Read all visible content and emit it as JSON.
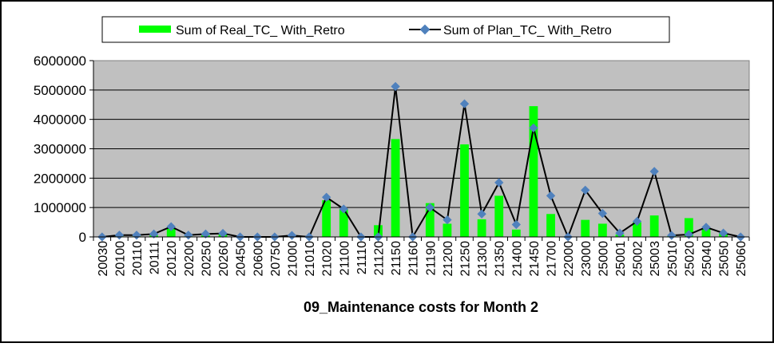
{
  "chart_data": {
    "type": "bar",
    "xlabel": "09_Maintenance costs for Month 2",
    "ylim": [
      0,
      6000000
    ],
    "yticks": [
      0,
      1000000,
      2000000,
      3000000,
      4000000,
      5000000,
      6000000
    ],
    "categories": [
      "20030",
      "20100",
      "20110",
      "20111",
      "20120",
      "20200",
      "20250",
      "20260",
      "20450",
      "20600",
      "20750",
      "21000",
      "21010",
      "21020",
      "21100",
      "21110",
      "21120",
      "21150",
      "21160",
      "21190",
      "21200",
      "21250",
      "21300",
      "21350",
      "21400",
      "21450",
      "21700",
      "22000",
      "23000",
      "25000",
      "25001",
      "25002",
      "25003",
      "25010",
      "25020",
      "25040",
      "25050",
      "25060"
    ],
    "series": [
      {
        "name": "Sum of Real_TC_ With_Retro",
        "type": "bar",
        "color": "#00ff00",
        "values": [
          0,
          20000,
          20000,
          50000,
          300000,
          20000,
          50000,
          80000,
          0,
          0,
          0,
          30000,
          10000,
          1250000,
          950000,
          0,
          400000,
          3330000,
          0,
          1150000,
          450000,
          3150000,
          600000,
          1400000,
          250000,
          4450000,
          780000,
          0,
          580000,
          450000,
          80000,
          500000,
          730000,
          30000,
          640000,
          300000,
          130000,
          0
        ]
      },
      {
        "name": "Sum of Plan_TC_ With_Retro",
        "type": "line",
        "color": "#000000",
        "marker_color": "#4f81bd",
        "values": [
          0,
          60000,
          60000,
          100000,
          350000,
          60000,
          100000,
          120000,
          0,
          0,
          0,
          50000,
          0,
          1350000,
          950000,
          0,
          0,
          5120000,
          0,
          1000000,
          580000,
          4530000,
          780000,
          1850000,
          420000,
          3710000,
          1400000,
          0,
          1590000,
          800000,
          130000,
          530000,
          2230000,
          50000,
          80000,
          330000,
          130000,
          0
        ]
      }
    ],
    "legend_position": "top",
    "grid": true,
    "plot_background": "#c0c0c0"
  }
}
